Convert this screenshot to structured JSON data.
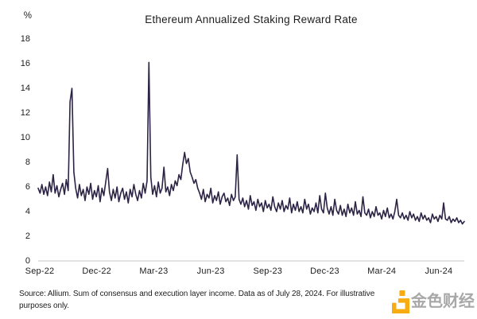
{
  "chart": {
    "title": "Ethereum Annualized Staking Reward Rate",
    "y_axis_unit": "%"
  },
  "chart_data": {
    "type": "line",
    "title": "Ethereum Annualized Staking Reward Rate",
    "xlabel": "",
    "ylabel": "%",
    "ylim": [
      0,
      18
    ],
    "y_ticks": [
      0,
      2,
      4,
      6,
      8,
      10,
      12,
      14,
      16,
      18
    ],
    "x_ticks": [
      "Sep-22",
      "Dec-22",
      "Mar-23",
      "Jun-23",
      "Sep-23",
      "Dec-23",
      "Mar-24",
      "Jun-24"
    ],
    "grid": false,
    "legend": false,
    "line_color": "#2c2345",
    "axis_line_color": "#d9d9d9",
    "series": [
      {
        "name": "Annualized staking reward rate (%)",
        "x_unit": "days from first observation (mid-Sep 2022), step 3",
        "values": [
          5.9,
          5.5,
          6.2,
          5.4,
          6.0,
          5.3,
          6.4,
          5.6,
          7.0,
          5.5,
          6.1,
          5.2,
          5.8,
          6.3,
          5.4,
          6.6,
          5.7,
          12.9,
          14.0,
          7.2,
          5.9,
          5.1,
          6.2,
          5.3,
          5.8,
          4.9,
          6.0,
          5.4,
          6.3,
          5.0,
          5.7,
          5.2,
          6.1,
          4.8,
          5.9,
          5.3,
          6.4,
          7.5,
          5.6,
          4.9,
          5.8,
          5.1,
          6.0,
          4.8,
          5.5,
          5.9,
          5.0,
          5.6,
          4.7,
          5.8,
          5.2,
          6.2,
          5.4,
          4.9,
          5.7,
          5.1,
          6.3,
          5.5,
          6.5,
          16.1,
          6.8,
          5.4,
          6.1,
          5.2,
          6.4,
          5.5,
          5.9,
          7.6,
          5.6,
          6.0,
          5.3,
          6.2,
          5.7,
          6.5,
          6.1,
          7.0,
          6.6,
          7.8,
          8.8,
          7.9,
          8.3,
          7.2,
          6.8,
          6.3,
          6.6,
          5.9,
          5.5,
          5.0,
          5.8,
          4.8,
          5.4,
          5.1,
          5.9,
          4.7,
          5.3,
          4.9,
          5.6,
          4.6,
          5.2,
          5.5,
          4.8,
          5.1,
          4.5,
          5.4,
          4.9,
          5.2,
          8.6,
          5.0,
          4.6,
          5.1,
          4.4,
          4.9,
          4.2,
          5.3,
          4.5,
          4.8,
          4.1,
          5.0,
          4.4,
          4.7,
          4.0,
          4.9,
          4.3,
          4.6,
          4.1,
          5.2,
          4.4,
          4.0,
          4.7,
          4.2,
          4.9,
          4.0,
          4.5,
          4.2,
          5.1,
          3.9,
          4.6,
          4.1,
          4.8,
          4.0,
          4.4,
          3.9,
          5.0,
          4.2,
          4.6,
          3.8,
          4.3,
          4.0,
          4.7,
          3.9,
          5.3,
          4.2,
          3.9,
          5.5,
          4.3,
          3.8,
          4.4,
          3.7,
          5.0,
          4.1,
          3.8,
          4.5,
          3.7,
          4.2,
          3.6,
          4.6,
          3.9,
          4.3,
          3.7,
          4.8,
          3.8,
          4.1,
          3.6,
          5.2,
          3.9,
          3.7,
          4.2,
          3.5,
          4.0,
          3.6,
          4.4,
          3.7,
          3.9,
          3.4,
          4.1,
          3.6,
          4.3,
          3.5,
          3.8,
          3.4,
          4.0,
          5.0,
          3.7,
          3.5,
          3.9,
          3.4,
          3.7,
          3.3,
          4.0,
          3.5,
          3.8,
          3.3,
          3.6,
          3.2,
          3.9,
          3.4,
          3.7,
          3.3,
          3.5,
          3.1,
          3.8,
          3.4,
          3.6,
          3.2,
          3.7,
          3.4,
          4.7,
          3.4,
          3.3,
          3.6,
          3.1,
          3.4,
          3.2,
          3.5,
          3.1,
          3.3,
          3.0,
          3.2
        ]
      }
    ]
  },
  "footer": {
    "source": "Source: Allium. Sum of consensus and execution layer income. Data as of July 28, 2024. For illustrative purposes only."
  },
  "watermark": {
    "text": "金色财经",
    "logo_color": "#F7A600"
  }
}
